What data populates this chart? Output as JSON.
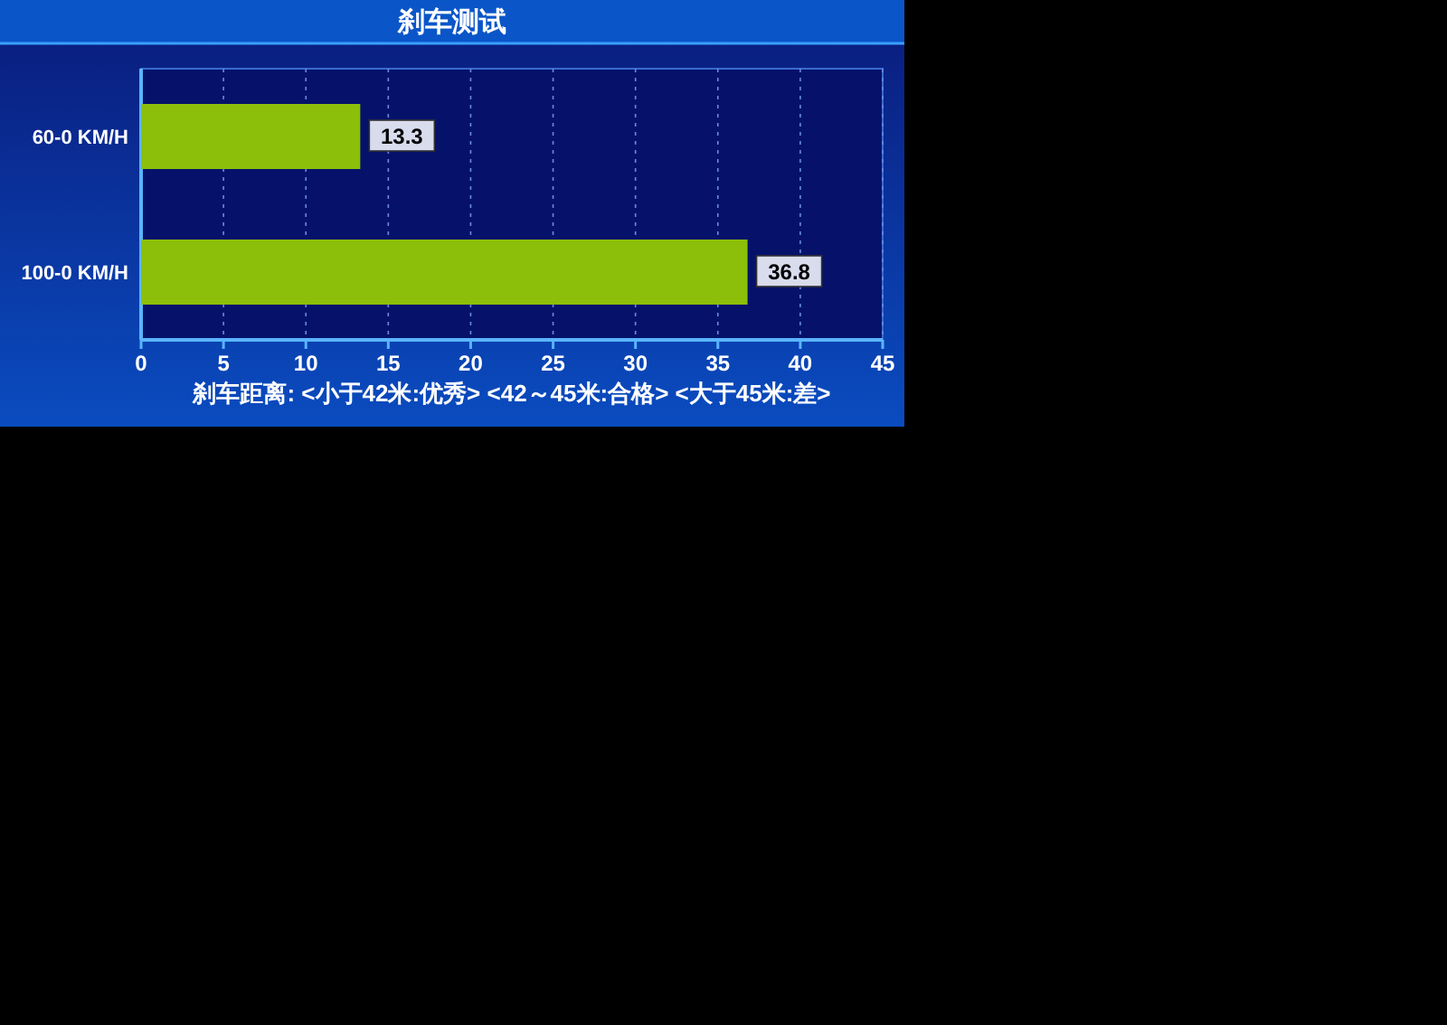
{
  "chart_data": {
    "type": "bar",
    "orientation": "horizontal",
    "title": "刹车测试",
    "xlabel": "刹车距离: <小于42米:优秀>  <42～45米:合格>  <大于45米:差>",
    "categories": [
      "60-0 KM/H",
      "100-0 KM/H"
    ],
    "values": [
      13.3,
      36.8
    ],
    "color": "#8cbf0a",
    "data_labels": true,
    "grid": "x",
    "xlim": [
      0,
      45
    ],
    "xticks": [
      0,
      5,
      10,
      15,
      20,
      25,
      30,
      35,
      40,
      45
    ]
  }
}
